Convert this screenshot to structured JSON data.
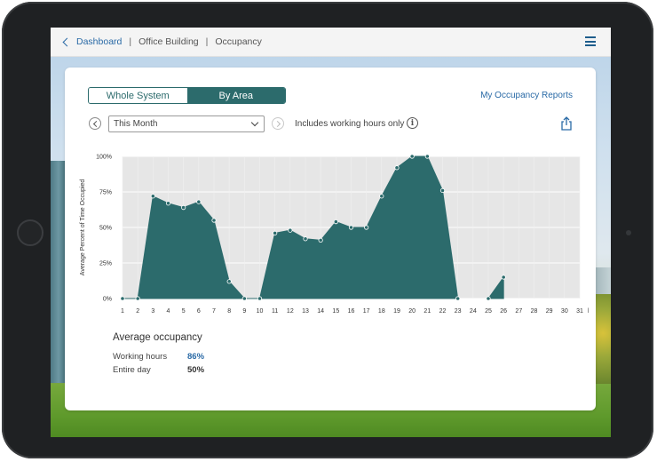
{
  "colors": {
    "accent": "#2c6b6c",
    "link": "#2a6aa6",
    "highlight_value": "#2a6aa6"
  },
  "breadcrumb": {
    "back_label": "Dashboard",
    "level2": "Office Building",
    "level3": "Occupancy",
    "separator": "|"
  },
  "toolbar": {
    "tab_whole_system": "Whole System",
    "tab_by_area": "By Area",
    "active_tab": "By Area",
    "reports_link": "My Occupancy Reports",
    "period_select": "This Month",
    "hours_note": "Includes working hours only",
    "info_glyph": "i"
  },
  "icons": [
    "chevron-left-icon",
    "menu-icon",
    "previous-icon",
    "next-icon",
    "chevron-down-icon",
    "info-icon",
    "share-icon"
  ],
  "chart_data": {
    "type": "area",
    "ylabel": "Average Percent of Time Occupied",
    "ylim": [
      0,
      100
    ],
    "yticks": [
      "0%",
      "25%",
      "50%",
      "75%",
      "100%"
    ],
    "ytick_values": [
      0,
      25,
      50,
      75,
      100
    ],
    "x_tick_labels": [
      "1",
      "2",
      "3",
      "4",
      "5",
      "6",
      "7",
      "8",
      "9",
      "10",
      "11",
      "12",
      "13",
      "14",
      "15",
      "16",
      "17",
      "18",
      "19",
      "20",
      "21",
      "22",
      "23",
      "24",
      "25",
      "26",
      "27",
      "28",
      "29",
      "30",
      "31"
    ],
    "x_unit": "ht",
    "grid": true,
    "background": "#e6e6e6",
    "fill": "#2c6b6c",
    "values": [
      0,
      0,
      72,
      67,
      64,
      68,
      55,
      12,
      0,
      0,
      46,
      48,
      42,
      41,
      54,
      50,
      50,
      72,
      92,
      100,
      100,
      76,
      0,
      null,
      0,
      15,
      null,
      null,
      null,
      null,
      null
    ]
  },
  "summary": {
    "title": "Average occupancy",
    "rows": [
      {
        "label": "Working hours",
        "value": "86%"
      },
      {
        "label": "Entire day",
        "value": "50%"
      }
    ]
  }
}
